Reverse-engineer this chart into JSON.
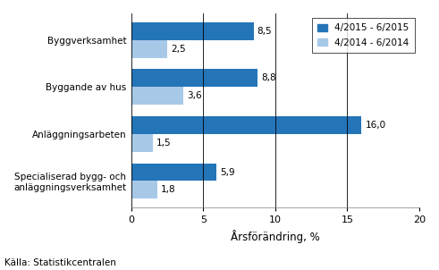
{
  "categories": [
    "Byggverksamhet",
    "Byggande av hus",
    "Anläggningsarbeten",
    "Specialiserad bygg- och\nanläggningsverksamhet"
  ],
  "series1_label": "4/2015 - 6/2015",
  "series2_label": "4/2014 - 6/2014",
  "series1_values": [
    8.5,
    8.8,
    16.0,
    5.9
  ],
  "series2_values": [
    2.5,
    3.6,
    1.5,
    1.8
  ],
  "series1_color": "#2475B8",
  "series2_color": "#A8C8E8",
  "xlim": [
    0,
    20
  ],
  "xticks": [
    0,
    5,
    10,
    15,
    20
  ],
  "xlabel": "Årsförändring, %",
  "source_text": "Källa: Statistikcentralen",
  "bar_height": 0.38,
  "label_fontsize": 7.5,
  "tick_fontsize": 8,
  "legend_fontsize": 7.5,
  "xlabel_fontsize": 8.5,
  "source_fontsize": 7.5
}
